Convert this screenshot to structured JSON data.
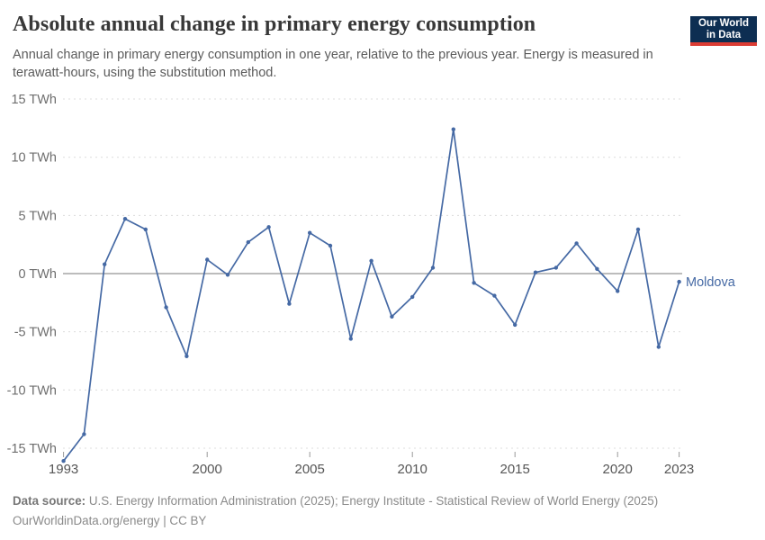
{
  "header": {
    "title": "Absolute annual change in primary energy consumption",
    "subtitle": "Annual change in primary energy consumption in one year, relative to the previous year. Energy is measured in terawatt-hours, using the substitution method.",
    "logo": {
      "line1": "Our World",
      "line2": "in Data"
    }
  },
  "chart_data": {
    "type": "line",
    "title": "Absolute annual change in primary energy consumption",
    "xlabel": "",
    "ylabel": "TWh",
    "grid": true,
    "legend_position": "right-of-last-point",
    "xlim": [
      1993,
      2023
    ],
    "ylim": [
      -16.5,
      15
    ],
    "years": [
      1993,
      1994,
      1995,
      1996,
      1997,
      1998,
      1999,
      2000,
      2001,
      2002,
      2003,
      2004,
      2005,
      2006,
      2007,
      2008,
      2009,
      2010,
      2011,
      2012,
      2013,
      2014,
      2015,
      2016,
      2017,
      2018,
      2019,
      2020,
      2021,
      2022,
      2023
    ],
    "series": [
      {
        "name": "Moldova",
        "values": [
          -16.1,
          -13.8,
          0.8,
          4.7,
          3.8,
          -2.9,
          -7.1,
          1.2,
          -0.1,
          2.7,
          4.0,
          -2.6,
          3.5,
          2.4,
          -5.6,
          1.1,
          -3.7,
          -2.0,
          0.5,
          12.4,
          -0.8,
          -1.9,
          -4.4,
          0.1,
          0.5,
          2.6,
          0.4,
          -1.5,
          3.8,
          -6.3,
          -0.7
        ]
      }
    ],
    "y_ticks": [
      {
        "value": 15,
        "label": "15 TWh"
      },
      {
        "value": 10,
        "label": "10 TWh"
      },
      {
        "value": 5,
        "label": "5 TWh"
      },
      {
        "value": 0,
        "label": "0 TWh"
      },
      {
        "value": -5,
        "label": "-5 TWh"
      },
      {
        "value": -10,
        "label": "-10 TWh"
      },
      {
        "value": -15,
        "label": "-15 TWh"
      }
    ],
    "x_ticks": [
      1993,
      2000,
      2005,
      2010,
      2015,
      2020,
      2023
    ],
    "colors": {
      "line": "#4569a4",
      "grid": "#dcdcdc",
      "zero_line": "#a5a5a5",
      "tick": "#999999",
      "y_label": "#6e6e6e",
      "x_label": "#555555",
      "entity_label": "#4569a4",
      "logo_bg": "#0d2e52",
      "logo_accent": "#dc3c34"
    }
  },
  "footer": {
    "datasource_label": "Data source:",
    "datasource_text": " U.S. Energy Information Administration (2025); Energy Institute - Statistical Review of World Energy (2025)",
    "license_line": "OurWorldinData.org/energy | CC BY"
  }
}
